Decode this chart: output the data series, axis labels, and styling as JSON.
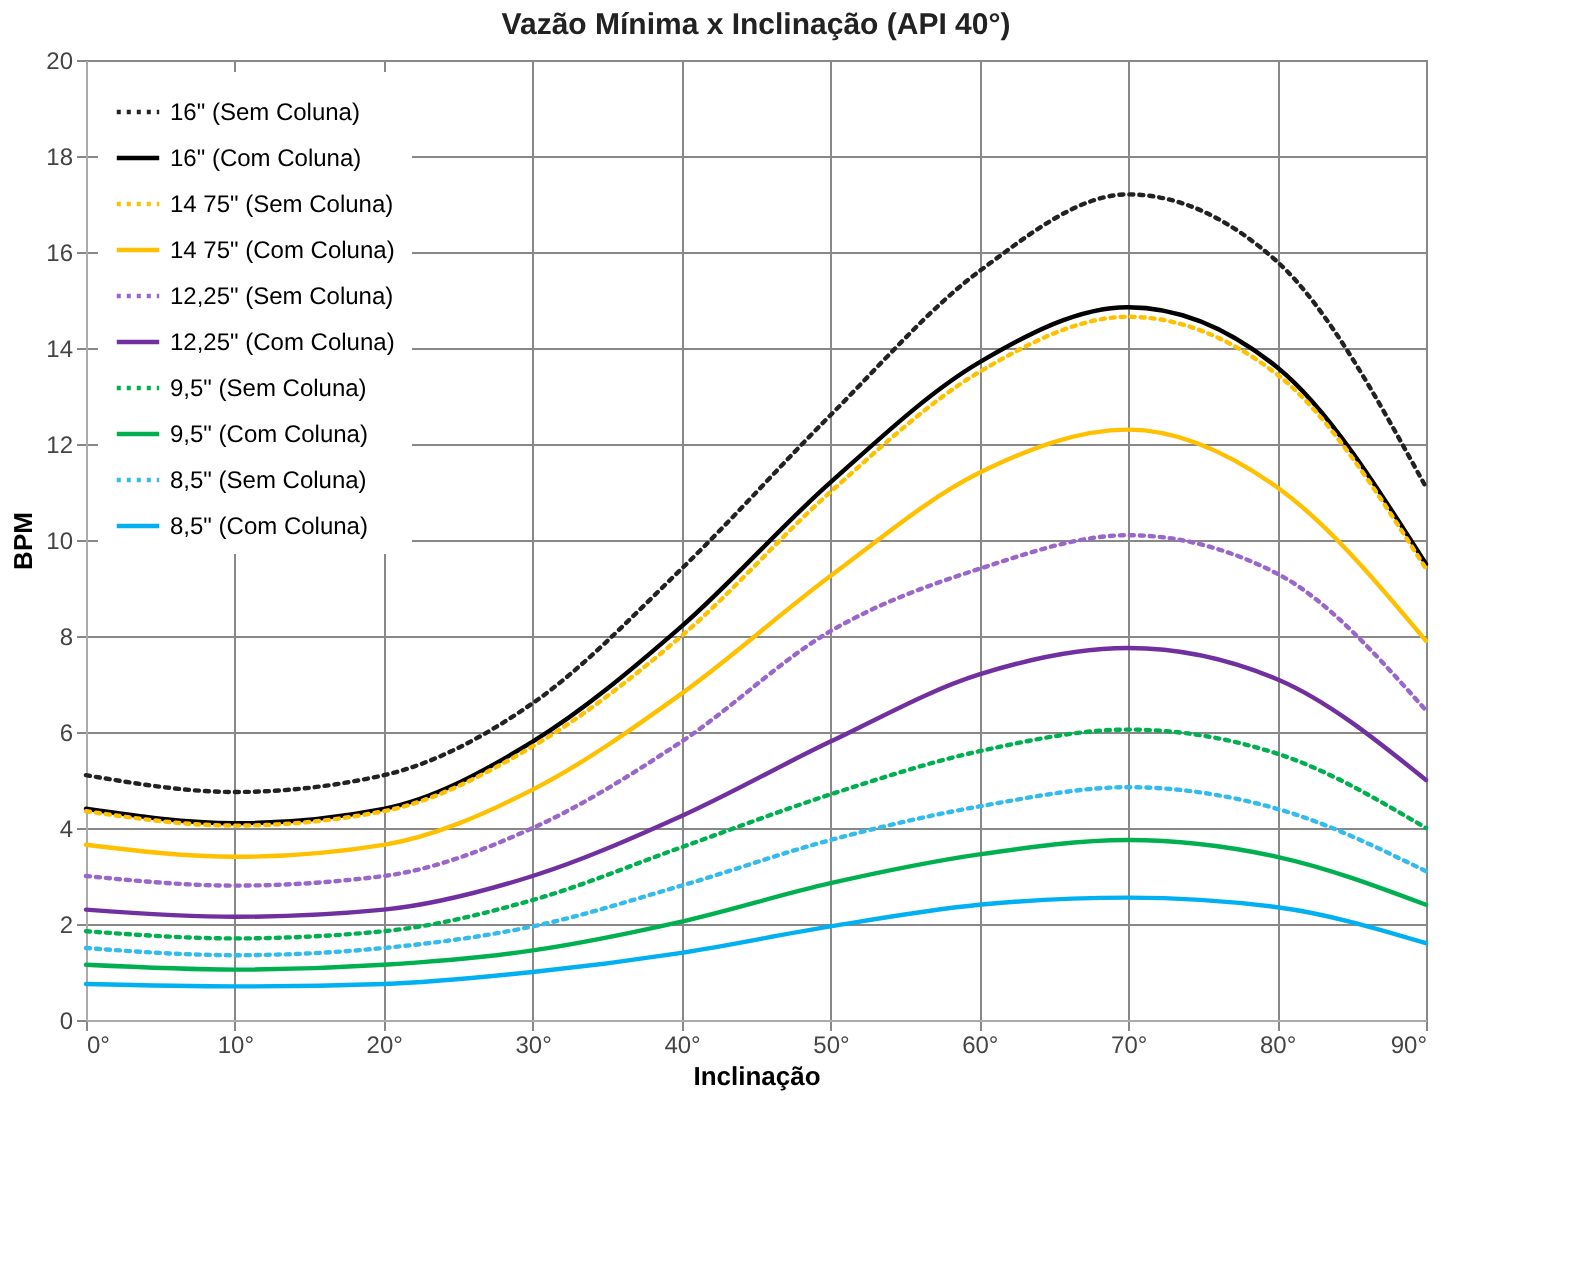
{
  "chart_data": {
    "type": "line",
    "title": "Vazão Mínima x Inclinação (API 40°)",
    "xlabel": "Inclinação",
    "ylabel": "BPM",
    "x": [
      0,
      10,
      20,
      30,
      40,
      50,
      60,
      70,
      80,
      90
    ],
    "series": [
      {
        "name": "16\" (Sem Coluna)",
        "color": "#222222",
        "line_style": "dotted",
        "values": [
          5.1,
          4.75,
          5.1,
          6.6,
          9.4,
          12.6,
          15.6,
          17.2,
          15.8,
          11.1
        ]
      },
      {
        "name": "16\" (Com Coluna)",
        "color": "#000000",
        "line_style": "solid",
        "values": [
          4.4,
          4.1,
          4.4,
          5.8,
          8.2,
          11.2,
          13.7,
          14.85,
          13.6,
          9.5
        ]
      },
      {
        "name": "14 75\" (Sem Coluna)",
        "color": "#ffc000",
        "line_style": "dotted",
        "values": [
          4.35,
          4.05,
          4.35,
          5.7,
          8.0,
          11.0,
          13.5,
          14.65,
          13.45,
          9.4
        ]
      },
      {
        "name": "14 75\" (Com Coluna)",
        "color": "#ffc000",
        "line_style": "solid",
        "values": [
          3.65,
          3.4,
          3.65,
          4.8,
          6.8,
          9.25,
          11.4,
          12.3,
          11.1,
          7.9
        ]
      },
      {
        "name": "12,25\" (Sem Coluna)",
        "color": "#9966cc",
        "line_style": "dotted",
        "values": [
          3.0,
          2.8,
          3.0,
          4.0,
          5.8,
          8.1,
          9.4,
          10.1,
          9.3,
          6.45
        ]
      },
      {
        "name": "12,25\" (Com Coluna)",
        "color": "#7030a0",
        "line_style": "solid",
        "values": [
          2.3,
          2.15,
          2.3,
          3.0,
          4.25,
          5.8,
          7.2,
          7.75,
          7.1,
          5.0
        ]
      },
      {
        "name": "9,5\" (Sem Coluna)",
        "color": "#00b050",
        "line_style": "dotted",
        "values": [
          1.85,
          1.7,
          1.85,
          2.5,
          3.6,
          4.7,
          5.6,
          6.05,
          5.55,
          4.0
        ]
      },
      {
        "name": "9,5\" (Com Coluna)",
        "color": "#00b050",
        "line_style": "solid",
        "values": [
          1.15,
          1.05,
          1.15,
          1.45,
          2.05,
          2.85,
          3.45,
          3.75,
          3.4,
          2.4
        ]
      },
      {
        "name": "8,5\" (Sem Coluna)",
        "color": "#33bbee",
        "line_style": "dotted",
        "values": [
          1.5,
          1.35,
          1.5,
          1.95,
          2.8,
          3.75,
          4.45,
          4.85,
          4.4,
          3.1
        ]
      },
      {
        "name": "8,5\" (Com Coluna)",
        "color": "#00b0f0",
        "line_style": "solid",
        "values": [
          0.75,
          0.7,
          0.75,
          1.0,
          1.4,
          1.95,
          2.4,
          2.55,
          2.35,
          1.6
        ]
      }
    ],
    "xlim": [
      0,
      90
    ],
    "xticks": [
      {
        "value": 0,
        "label": "0°"
      },
      {
        "value": 10,
        "label": "10°"
      },
      {
        "value": 20,
        "label": "20°"
      },
      {
        "value": 30,
        "label": "30°"
      },
      {
        "value": 40,
        "label": "40°"
      },
      {
        "value": 50,
        "label": "50°"
      },
      {
        "value": 60,
        "label": "60°"
      },
      {
        "value": 70,
        "label": "70°"
      },
      {
        "value": 80,
        "label": "80°"
      },
      {
        "value": 90,
        "label": "90°"
      }
    ],
    "ylim": [
      0,
      20
    ],
    "yticks": [
      0,
      2,
      4,
      6,
      8,
      10,
      12,
      14,
      16,
      18,
      20
    ],
    "grid": true,
    "legend": "top left"
  }
}
